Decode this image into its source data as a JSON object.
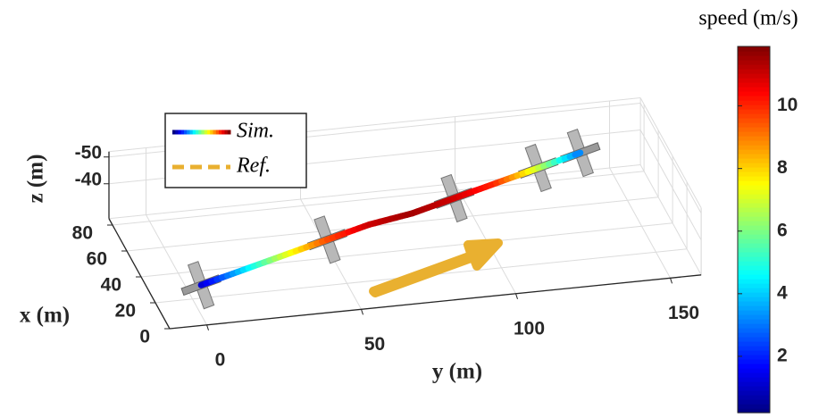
{
  "chart_data": {
    "type": "trajectory",
    "xlabel": "x (m)",
    "ylabel": "y (m)",
    "zlabel": "z (m)",
    "xlim": [
      0,
      85
    ],
    "ylim": [
      -12,
      160
    ],
    "zlim": [
      -52,
      -27
    ],
    "zreverse": true,
    "xticks": [
      0,
      20,
      40,
      60,
      80
    ],
    "yticks": [
      0,
      50,
      100,
      150
    ],
    "zticks": [
      -50,
      -40
    ],
    "grid": true,
    "trajectory": {
      "name": "Sim.",
      "x": [
        8,
        14,
        20,
        26,
        32,
        37,
        43,
        49,
        55,
        61
      ],
      "y": [
        0,
        15,
        30,
        45,
        60,
        75,
        90,
        105,
        120,
        135
      ],
      "z": [
        -38,
        -39,
        -40,
        -41,
        -42,
        -42,
        -43,
        -44,
        -45,
        -46
      ],
      "speed": [
        1,
        4,
        7,
        9.5,
        11,
        11.5,
        11,
        10,
        7,
        3
      ]
    },
    "reference": {
      "name": "Ref.",
      "color": "#e9b030"
    },
    "colorbar": {
      "label": "speed (m/s)",
      "lim": [
        0.2,
        11.9
      ],
      "ticks": [
        2,
        4,
        6,
        8,
        10
      ],
      "colormap": "jet"
    }
  }
}
